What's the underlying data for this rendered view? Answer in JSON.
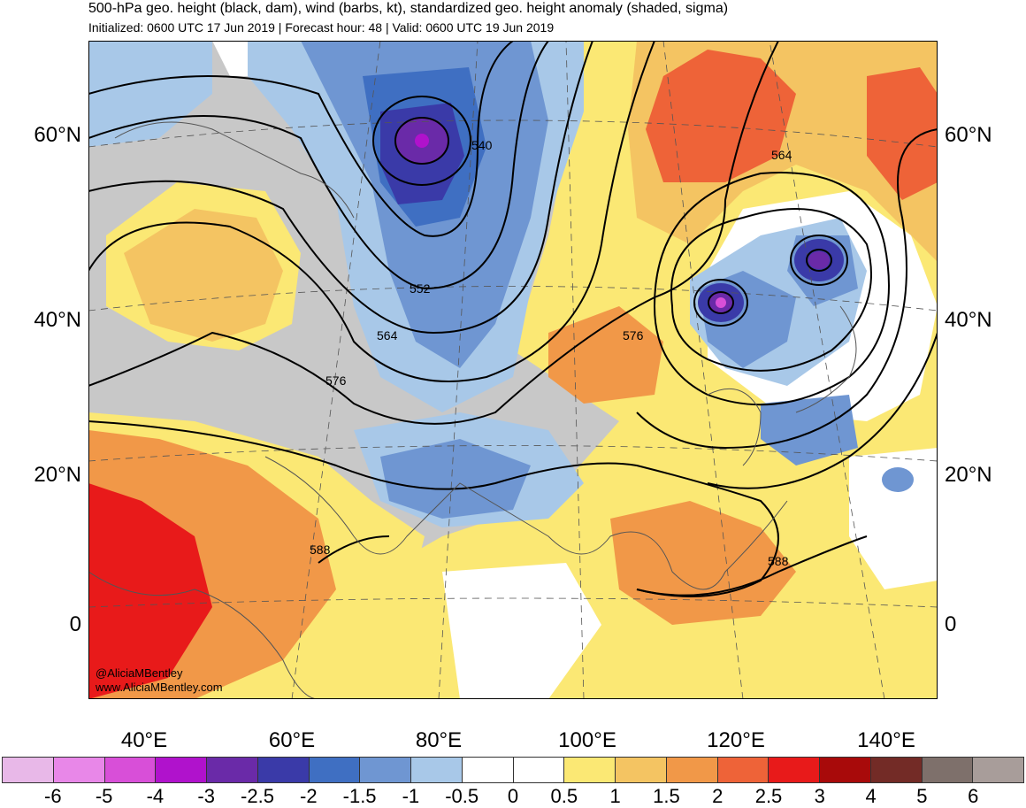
{
  "header": {
    "title": "500-hPa geo. height (black, dam), wind (barbs, kt), standardized geo. height anomaly (shaded, sigma)",
    "subtitle": "Initialized: 0600 UTC 17 Jun 2019 | Forecast hour: 48 | Valid: 0600 UTC 19 Jun 2019"
  },
  "axes": {
    "lat_labels": [
      "60°N",
      "40°N",
      "20°N",
      "0"
    ],
    "lon_labels": [
      "40°E",
      "60°E",
      "80°E",
      "100°E",
      "120°E",
      "140°E"
    ]
  },
  "contours": {
    "labels": [
      "540",
      "552",
      "564",
      "576",
      "588",
      "564",
      "576",
      "588"
    ]
  },
  "credit": {
    "handle": "@AliciaMBentley",
    "site": "www.AliciaMBentley.com"
  },
  "colorbar": {
    "colors": [
      "#e8b8e8",
      "#e887e8",
      "#d84fd8",
      "#b012cc",
      "#6a2aa8",
      "#3a3aa8",
      "#3f6fc2",
      "#6f96d2",
      "#a8c8e8",
      "#ffffff",
      "#ffffff",
      "#fbe874",
      "#f4c462",
      "#f19848",
      "#ee6338",
      "#e81a1a",
      "#a80a0a",
      "#732b26",
      "#7e706b",
      "#a89d9a"
    ],
    "tick_labels": [
      "-6",
      "-5",
      "-4",
      "-3",
      "-2.5",
      "-2",
      "-1.5",
      "-1",
      "-0.5",
      "0",
      "0.5",
      "1",
      "1.5",
      "2",
      "2.5",
      "3",
      "4",
      "5",
      "6"
    ]
  }
}
